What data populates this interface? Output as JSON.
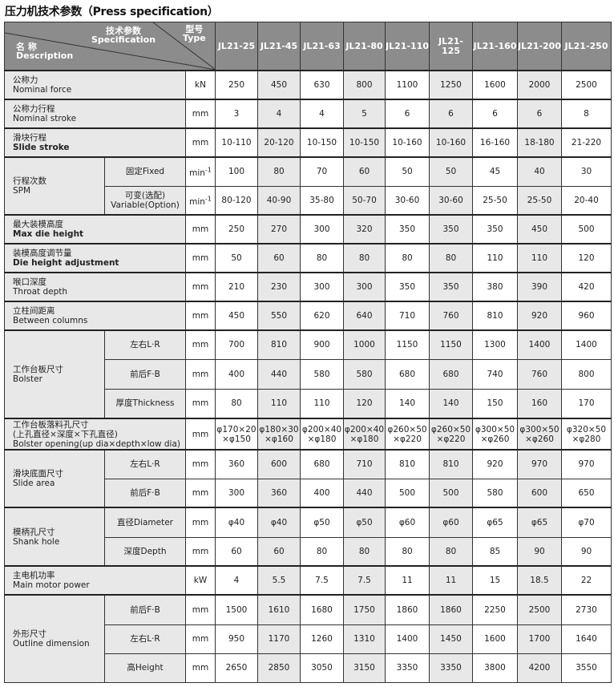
{
  "title": "压力机技术参数（Press specification）",
  "header": {
    "spec_cn": "技术参数",
    "spec_en": "Specification",
    "type_cn": "型号",
    "type_en": "Type",
    "name_cn": "名 称",
    "name_en": "Description",
    "models": [
      "JL21-25",
      "JL21-45",
      "JL21-63",
      "JL21-80",
      "JL21-110",
      "JL21-125",
      "JL21-160",
      "JL21-200",
      "JL21-250"
    ]
  },
  "rows": [
    {
      "cn": "公称力",
      "en": "Nominal force",
      "unit": "kN",
      "values": [
        "250",
        "450",
        "630",
        "800",
        "1100",
        "1250",
        "1600",
        "2000",
        "2500"
      ]
    },
    {
      "cn": "公称力行程",
      "en": "Nominal stroke",
      "unit": "mm",
      "values": [
        "3",
        "4",
        "4",
        "5",
        "6",
        "6",
        "6",
        "6",
        "8"
      ]
    },
    {
      "cn": "滑块行程",
      "en": "Slide stroke",
      "en_bold": true,
      "unit": "mm",
      "values": [
        "10-110",
        "20-120",
        "10-150",
        "10-150",
        "10-160",
        "10-160",
        "16-160",
        "18-180",
        "21-220"
      ]
    },
    {
      "cn": "行程次数",
      "en": "SPM",
      "sub": [
        {
          "label": "固定Fixed",
          "unit": "min-1",
          "values": [
            "100",
            "80",
            "70",
            "60",
            "50",
            "50",
            "45",
            "40",
            "30"
          ]
        },
        {
          "label": "可变(选配)\nVariable(Option)",
          "unit": "min-1",
          "values": [
            "80-120",
            "40-90",
            "35-80",
            "50-70",
            "30-60",
            "30-60",
            "25-50",
            "25-50",
            "20-40"
          ]
        }
      ]
    },
    {
      "cn": "最大装模高度",
      "en": "Max die height",
      "en_bold": true,
      "unit": "mm",
      "values": [
        "250",
        "270",
        "300",
        "320",
        "350",
        "350",
        "350",
        "450",
        "500"
      ]
    },
    {
      "cn": "装模高度调节量",
      "en": "Die height adjustment",
      "en_bold": true,
      "unit": "mm",
      "values": [
        "50",
        "60",
        "80",
        "80",
        "80",
        "80",
        "110",
        "110",
        "120"
      ]
    },
    {
      "cn": "喉口深度",
      "en": "Throat depth",
      "unit": "mm",
      "values": [
        "210",
        "230",
        "300",
        "300",
        "350",
        "350",
        "380",
        "390",
        "420"
      ]
    },
    {
      "cn": "立柱间距离",
      "en": "Between columns",
      "unit": "mm",
      "values": [
        "450",
        "550",
        "620",
        "640",
        "710",
        "760",
        "810",
        "920",
        "960"
      ]
    },
    {
      "cn": "工作台板尺寸",
      "en": "Bolster",
      "sub": [
        {
          "label": "左右L·R",
          "unit": "mm",
          "values": [
            "700",
            "810",
            "900",
            "1000",
            "1150",
            "1150",
            "1300",
            "1400",
            "1400"
          ]
        },
        {
          "label": "前后F·B",
          "unit": "mm",
          "values": [
            "400",
            "440",
            "580",
            "580",
            "680",
            "680",
            "740",
            "760",
            "800"
          ]
        },
        {
          "label": "厚度Thickness",
          "unit": "mm",
          "values": [
            "80",
            "110",
            "110",
            "120",
            "140",
            "140",
            "150",
            "160",
            "170"
          ]
        }
      ]
    },
    {
      "cn": "工作台板落料孔尺寸\n(上孔直径×深度×下孔直径)",
      "en": "Bolster opening(up dia×depth×low dia)",
      "unit": "mm",
      "values": [
        "φ170×20\n×φ150",
        "φ180×30\n×φ160",
        "φ200×40\n×φ180",
        "φ200×40\n×φ180",
        "φ260×50\n×φ220",
        "φ260×50\n×φ220",
        "φ300×50\n×φ260",
        "φ300×50\n×φ260",
        "φ320×50\n×φ280"
      ]
    },
    {
      "cn": "滑块底面尺寸",
      "en": "Slide area",
      "sub": [
        {
          "label": "左右L·R",
          "unit": "mm",
          "values": [
            "360",
            "600",
            "680",
            "710",
            "810",
            "810",
            "920",
            "970",
            "970"
          ]
        },
        {
          "label": "前后F·B",
          "unit": "mm",
          "values": [
            "300",
            "360",
            "400",
            "440",
            "500",
            "500",
            "580",
            "600",
            "650"
          ]
        }
      ]
    },
    {
      "cn": "模柄孔尺寸",
      "en": "Shank hole",
      "sub": [
        {
          "label": "直径Diameter",
          "unit": "mm",
          "values": [
            "φ40",
            "φ40",
            "φ50",
            "φ50",
            "φ60",
            "φ60",
            "φ65",
            "φ65",
            "φ70"
          ]
        },
        {
          "label": "深度Depth",
          "unit": "mm",
          "values": [
            "60",
            "60",
            "80",
            "80",
            "80",
            "80",
            "85",
            "90",
            "90"
          ]
        }
      ]
    },
    {
      "cn": "主电机功率",
      "en": "Main motor power",
      "unit": "kW",
      "values": [
        "4",
        "5.5",
        "7.5",
        "7.5",
        "11",
        "11",
        "15",
        "18.5",
        "22"
      ]
    },
    {
      "cn": "外形尺寸",
      "en": "Outline dimension",
      "sub": [
        {
          "label": "前后F·B",
          "unit": "mm",
          "values": [
            "1500",
            "1610",
            "1680",
            "1750",
            "1860",
            "1860",
            "2250",
            "2500",
            "2730"
          ]
        },
        {
          "label": "左右L·R",
          "unit": "mm",
          "values": [
            "950",
            "1170",
            "1260",
            "1310",
            "1400",
            "1450",
            "1600",
            "1700",
            "1640"
          ]
        },
        {
          "label": "高Height",
          "unit": "mm",
          "values": [
            "2650",
            "2850",
            "3050",
            "3150",
            "3350",
            "3350",
            "3800",
            "4200",
            "3550"
          ]
        }
      ]
    }
  ]
}
